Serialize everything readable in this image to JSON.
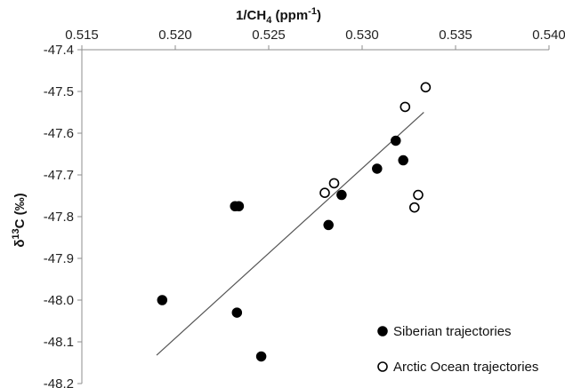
{
  "chart_data": {
    "type": "scatter",
    "xlabel": {
      "base": "1/CH",
      "sub": "4",
      "mid": " (ppm",
      "sup": "-1",
      "end": ")"
    },
    "ylabel": {
      "base": "δ",
      "sup": "13",
      "end": "C (‰)"
    },
    "xlim": [
      0.515,
      0.54
    ],
    "ylim": [
      -48.2,
      -47.4
    ],
    "x_ticks": [
      "0.515",
      "0.520",
      "0.525",
      "0.530",
      "0.535",
      "0.540"
    ],
    "y_ticks": [
      "-47.4",
      "-47.5",
      "-47.6",
      "-47.7",
      "-47.8",
      "-47.9",
      "-48.0",
      "-48.1",
      "-48.2"
    ],
    "x_axis_position": "top",
    "grid": false,
    "legend_position": "bottom-right",
    "series": [
      {
        "name": "Siberian trajectories",
        "marker": "filled-circle",
        "color": "#000000",
        "points": [
          [
            0.5193,
            -48.0
          ],
          [
            0.5232,
            -47.775
          ],
          [
            0.5234,
            -47.775
          ],
          [
            0.5233,
            -48.03
          ],
          [
            0.5246,
            -48.135
          ],
          [
            0.5282,
            -47.82
          ],
          [
            0.5289,
            -47.748
          ],
          [
            0.5308,
            -47.685
          ],
          [
            0.5318,
            -47.618
          ],
          [
            0.5322,
            -47.665
          ]
        ]
      },
      {
        "name": "Arctic Ocean trajectories",
        "marker": "open-circle",
        "color": "#000000",
        "points": [
          [
            0.528,
            -47.743
          ],
          [
            0.5285,
            -47.72
          ],
          [
            0.5323,
            -47.537
          ],
          [
            0.5334,
            -47.49
          ],
          [
            0.533,
            -47.748
          ],
          [
            0.5328,
            -47.778
          ]
        ]
      }
    ],
    "trendline": {
      "x": [
        0.519,
        0.5333
      ],
      "y": [
        -48.132,
        -47.55
      ],
      "color": "#555555"
    }
  }
}
